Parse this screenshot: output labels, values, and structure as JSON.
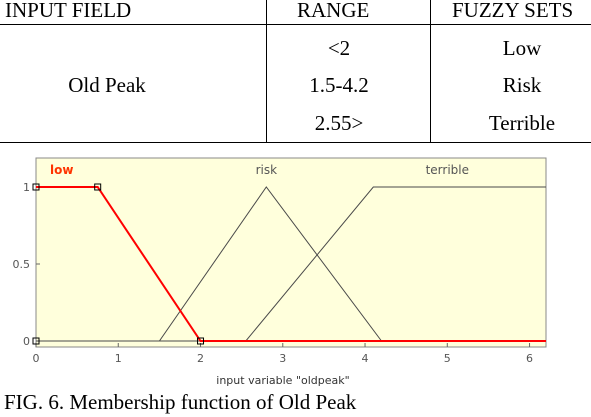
{
  "table": {
    "headers": [
      "INPUT FIELD",
      "RANGE",
      "FUZZY SETS"
    ],
    "row": {
      "input_field": "Old Peak",
      "ranges": [
        "<2",
        "1.5-4.2",
        "2.55>"
      ],
      "fuzzy_sets": [
        "Low",
        "Risk",
        "Terrible"
      ]
    }
  },
  "chart_data": {
    "type": "line",
    "xlabel": "input variable \"oldpeak\"",
    "ylabel": "",
    "xlim": [
      0,
      6.2
    ],
    "ylim": [
      0,
      1
    ],
    "x_ticks": [
      "0",
      "1",
      "2",
      "3",
      "4",
      "5",
      "6"
    ],
    "y_ticks": [
      "0",
      "0.5",
      "1"
    ],
    "background": "#ffffdc",
    "series": [
      {
        "name": "low",
        "color": "#ff0000",
        "x": [
          0,
          0.75,
          2,
          6.2
        ],
        "y": [
          1,
          1,
          0,
          0
        ]
      },
      {
        "name": "risk",
        "color": "#4a4a4a",
        "x": [
          0,
          1.5,
          2.8,
          4.2,
          6.2
        ],
        "y": [
          0,
          0,
          1,
          0,
          0
        ]
      },
      {
        "name": "terrible",
        "color": "#4a4a4a",
        "x": [
          0,
          2.55,
          4.1,
          6.2
        ],
        "y": [
          0,
          0,
          1,
          1
        ]
      }
    ]
  },
  "caption": "FIG. 6. Membership function of Old Peak"
}
